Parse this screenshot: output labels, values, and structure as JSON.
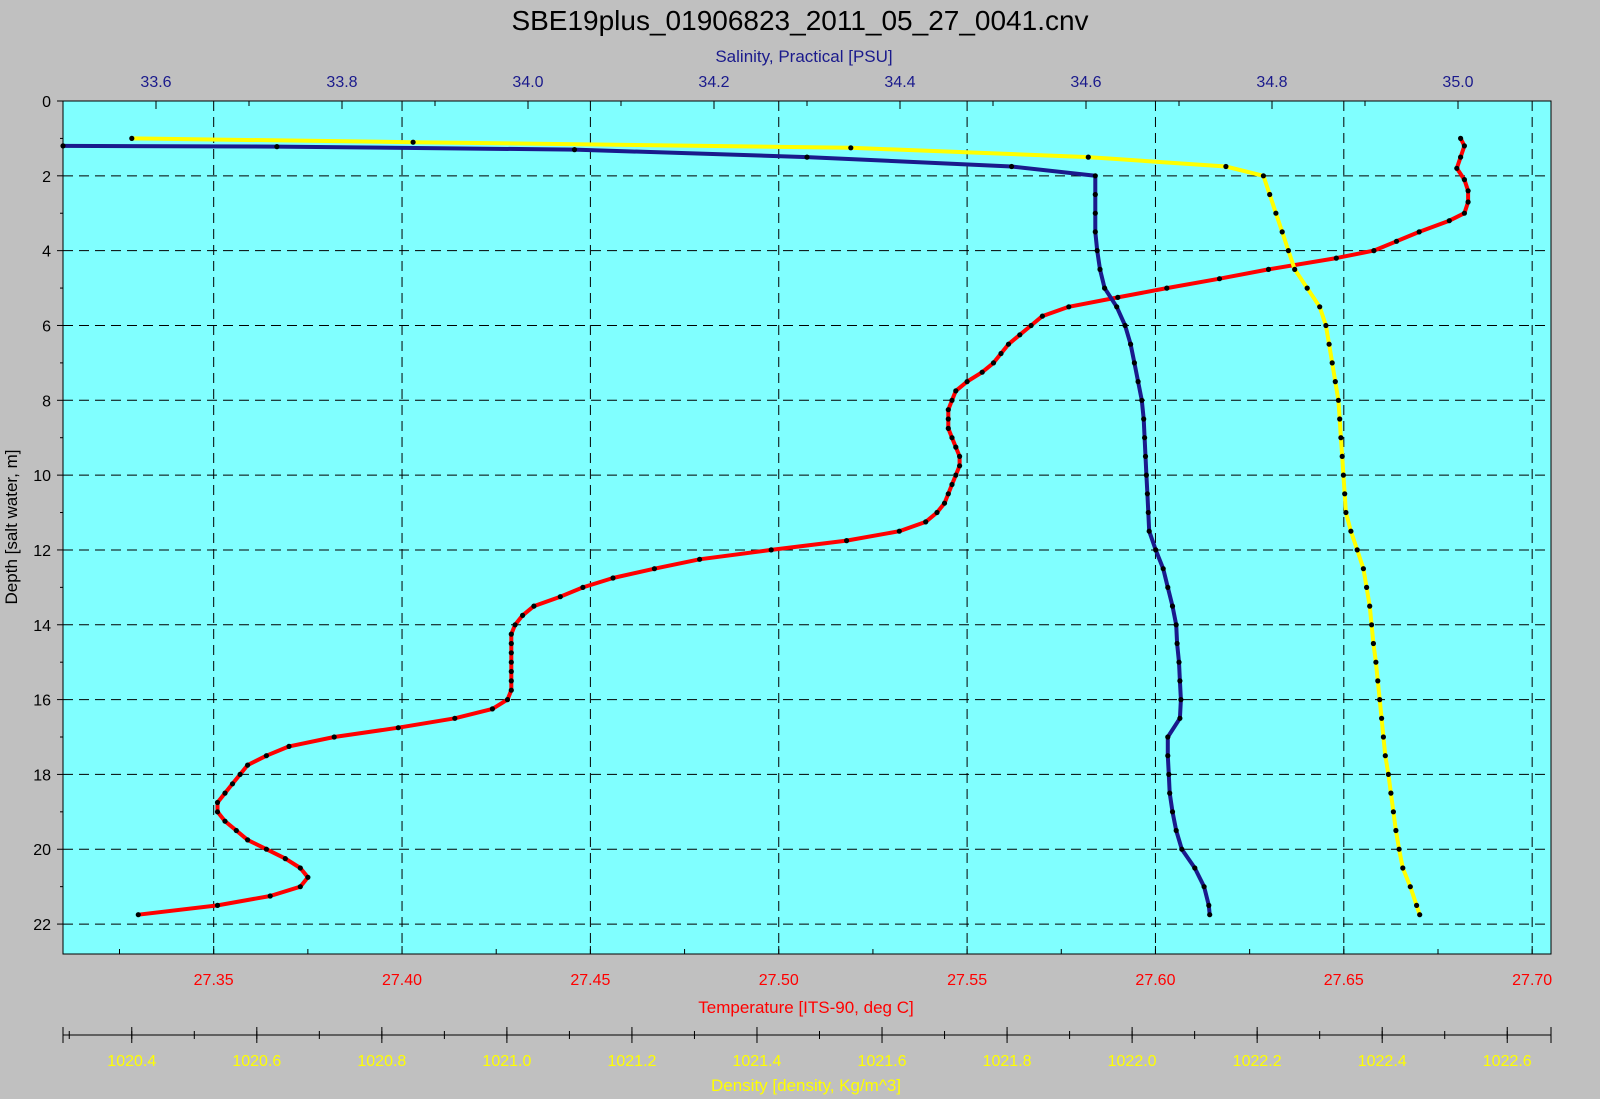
{
  "chart_data": {
    "type": "line",
    "title": "SBE19plus_01906823_2011_05_27_0041.cnv",
    "background": "#80ffff",
    "grid": true,
    "y_axis": {
      "label": "Depth [salt water, m]",
      "range": [
        0,
        22.8
      ],
      "inverted": true,
      "ticks": [
        "0",
        "2",
        "4",
        "6",
        "8",
        "10",
        "12",
        "14",
        "16",
        "18",
        "20",
        "22"
      ],
      "color": "#000000"
    },
    "salinity_axis": {
      "label": "Salinity, Practical [PSU]",
      "position": "top",
      "range": [
        33.5,
        35.1
      ],
      "ticks": [
        "33.6",
        "33.8",
        "34.0",
        "34.2",
        "34.4",
        "34.6",
        "34.8",
        "35.0"
      ],
      "color": "#1a1a8c"
    },
    "temperature_axis": {
      "label": "Temperature [ITS-90, deg C]",
      "position": "bottom",
      "range": [
        27.31,
        27.705
      ],
      "ticks": [
        "27.35",
        "27.40",
        "27.45",
        "27.50",
        "27.55",
        "27.60",
        "27.65",
        "27.70"
      ],
      "color": "#ff0000"
    },
    "density_axis": {
      "label": "Density [density, Kg/m^3]",
      "position": "bottom",
      "range": [
        1020.29,
        1022.67
      ],
      "ticks": [
        "1020.4",
        "1020.6",
        "1020.8",
        "1021.0",
        "1021.2",
        "1021.4",
        "1021.6",
        "1021.8",
        "1022.0",
        "1022.2",
        "1022.4",
        "1022.6"
      ],
      "color": "#ffff00"
    },
    "series": [
      {
        "name": "Temperature [ITS-90, deg C]",
        "axis": "temperature",
        "color": "#ff0000",
        "points": [
          [
            27.681,
            1.0
          ],
          [
            27.682,
            1.2
          ],
          [
            27.681,
            1.5
          ],
          [
            27.68,
            1.8
          ],
          [
            27.682,
            2.1
          ],
          [
            27.683,
            2.4
          ],
          [
            27.683,
            2.7
          ],
          [
            27.682,
            3.0
          ],
          [
            27.678,
            3.2
          ],
          [
            27.67,
            3.5
          ],
          [
            27.664,
            3.75
          ],
          [
            27.658,
            4.0
          ],
          [
            27.648,
            4.2
          ],
          [
            27.63,
            4.5
          ],
          [
            27.617,
            4.75
          ],
          [
            27.603,
            5.0
          ],
          [
            27.59,
            5.25
          ],
          [
            27.577,
            5.5
          ],
          [
            27.57,
            5.75
          ],
          [
            27.567,
            6.0
          ],
          [
            27.564,
            6.25
          ],
          [
            27.561,
            6.5
          ],
          [
            27.559,
            6.75
          ],
          [
            27.557,
            7.0
          ],
          [
            27.554,
            7.25
          ],
          [
            27.55,
            7.5
          ],
          [
            27.547,
            7.75
          ],
          [
            27.546,
            8.0
          ],
          [
            27.545,
            8.25
          ],
          [
            27.545,
            8.5
          ],
          [
            27.545,
            8.75
          ],
          [
            27.546,
            9.0
          ],
          [
            27.547,
            9.25
          ],
          [
            27.548,
            9.5
          ],
          [
            27.548,
            9.75
          ],
          [
            27.547,
            10.0
          ],
          [
            27.546,
            10.25
          ],
          [
            27.545,
            10.5
          ],
          [
            27.544,
            10.75
          ],
          [
            27.542,
            11.0
          ],
          [
            27.539,
            11.25
          ],
          [
            27.532,
            11.5
          ],
          [
            27.518,
            11.75
          ],
          [
            27.498,
            12.0
          ],
          [
            27.479,
            12.25
          ],
          [
            27.467,
            12.5
          ],
          [
            27.456,
            12.75
          ],
          [
            27.448,
            13.0
          ],
          [
            27.442,
            13.25
          ],
          [
            27.435,
            13.5
          ],
          [
            27.432,
            13.75
          ],
          [
            27.43,
            14.0
          ],
          [
            27.429,
            14.25
          ],
          [
            27.429,
            14.5
          ],
          [
            27.429,
            14.75
          ],
          [
            27.429,
            15.0
          ],
          [
            27.429,
            15.25
          ],
          [
            27.429,
            15.5
          ],
          [
            27.429,
            15.75
          ],
          [
            27.428,
            16.0
          ],
          [
            27.424,
            16.25
          ],
          [
            27.414,
            16.5
          ],
          [
            27.399,
            16.75
          ],
          [
            27.382,
            17.0
          ],
          [
            27.37,
            17.25
          ],
          [
            27.364,
            17.5
          ],
          [
            27.359,
            17.75
          ],
          [
            27.357,
            18.0
          ],
          [
            27.355,
            18.25
          ],
          [
            27.353,
            18.5
          ],
          [
            27.351,
            18.75
          ],
          [
            27.351,
            19.0
          ],
          [
            27.353,
            19.25
          ],
          [
            27.356,
            19.5
          ],
          [
            27.359,
            19.75
          ],
          [
            27.364,
            20.0
          ],
          [
            27.369,
            20.25
          ],
          [
            27.373,
            20.5
          ],
          [
            27.375,
            20.75
          ],
          [
            27.373,
            21.0
          ],
          [
            27.365,
            21.25
          ],
          [
            27.351,
            21.5
          ],
          [
            27.33,
            21.75
          ]
        ]
      },
      {
        "name": "Salinity, Practical [PSU]",
        "axis": "salinity",
        "color": "#1a1a8c",
        "points": [
          [
            33.5,
            1.2
          ],
          [
            33.73,
            1.22
          ],
          [
            34.05,
            1.3
          ],
          [
            34.3,
            1.5
          ],
          [
            34.52,
            1.75
          ],
          [
            34.61,
            2.0
          ],
          [
            34.61,
            2.5
          ],
          [
            34.61,
            3.0
          ],
          [
            34.61,
            3.5
          ],
          [
            34.612,
            4.0
          ],
          [
            34.615,
            4.5
          ],
          [
            34.62,
            5.0
          ],
          [
            34.633,
            5.5
          ],
          [
            34.642,
            6.0
          ],
          [
            34.648,
            6.5
          ],
          [
            34.652,
            7.0
          ],
          [
            34.656,
            7.5
          ],
          [
            34.66,
            8.0
          ],
          [
            34.662,
            8.5
          ],
          [
            34.663,
            9.0
          ],
          [
            34.664,
            9.5
          ],
          [
            34.665,
            10.0
          ],
          [
            34.666,
            10.5
          ],
          [
            34.667,
            11.0
          ],
          [
            34.668,
            11.5
          ],
          [
            34.675,
            12.0
          ],
          [
            34.683,
            12.5
          ],
          [
            34.688,
            13.0
          ],
          [
            34.693,
            13.5
          ],
          [
            34.697,
            14.0
          ],
          [
            34.698,
            14.5
          ],
          [
            34.7,
            15.0
          ],
          [
            34.701,
            15.5
          ],
          [
            34.702,
            16.0
          ],
          [
            34.701,
            16.5
          ],
          [
            34.688,
            17.0
          ],
          [
            34.688,
            17.5
          ],
          [
            34.689,
            18.0
          ],
          [
            34.69,
            18.5
          ],
          [
            34.693,
            19.0
          ],
          [
            34.697,
            19.5
          ],
          [
            34.703,
            20.0
          ],
          [
            34.717,
            20.5
          ],
          [
            34.727,
            21.0
          ],
          [
            34.732,
            21.5
          ],
          [
            34.733,
            21.75
          ]
        ]
      },
      {
        "name": "Density [density, Kg/m^3]",
        "axis": "density",
        "color": "#ffff00",
        "points": [
          [
            1020.4,
            1.0
          ],
          [
            1020.85,
            1.1
          ],
          [
            1021.55,
            1.25
          ],
          [
            1021.93,
            1.5
          ],
          [
            1022.15,
            1.75
          ],
          [
            1022.21,
            2.0
          ],
          [
            1022.22,
            2.5
          ],
          [
            1022.23,
            3.0
          ],
          [
            1022.24,
            3.5
          ],
          [
            1022.25,
            4.0
          ],
          [
            1022.26,
            4.5
          ],
          [
            1022.28,
            5.0
          ],
          [
            1022.3,
            5.5
          ],
          [
            1022.31,
            6.0
          ],
          [
            1022.315,
            6.5
          ],
          [
            1022.32,
            7.0
          ],
          [
            1022.325,
            7.5
          ],
          [
            1022.33,
            8.0
          ],
          [
            1022.332,
            8.5
          ],
          [
            1022.334,
            9.0
          ],
          [
            1022.336,
            9.5
          ],
          [
            1022.338,
            10.0
          ],
          [
            1022.34,
            10.5
          ],
          [
            1022.342,
            11.0
          ],
          [
            1022.35,
            11.5
          ],
          [
            1022.36,
            12.0
          ],
          [
            1022.37,
            12.5
          ],
          [
            1022.375,
            13.0
          ],
          [
            1022.38,
            13.5
          ],
          [
            1022.383,
            14.0
          ],
          [
            1022.386,
            14.5
          ],
          [
            1022.39,
            15.0
          ],
          [
            1022.393,
            15.5
          ],
          [
            1022.396,
            16.0
          ],
          [
            1022.399,
            16.5
          ],
          [
            1022.402,
            17.0
          ],
          [
            1022.405,
            17.5
          ],
          [
            1022.41,
            18.0
          ],
          [
            1022.414,
            18.5
          ],
          [
            1022.418,
            19.0
          ],
          [
            1022.422,
            19.5
          ],
          [
            1022.427,
            20.0
          ],
          [
            1022.433,
            20.5
          ],
          [
            1022.445,
            21.0
          ],
          [
            1022.455,
            21.5
          ],
          [
            1022.46,
            21.75
          ]
        ]
      }
    ]
  }
}
